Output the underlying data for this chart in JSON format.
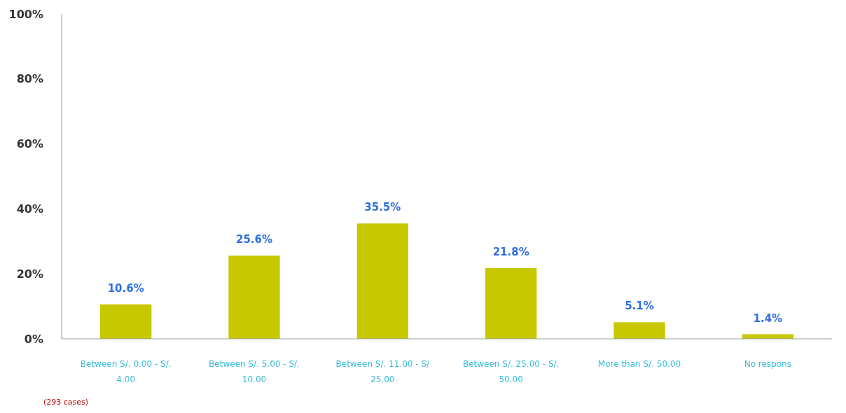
{
  "chart_data": {
    "type": "bar",
    "categories": [
      "Between S/. 0.00 - S/. 4.00",
      "Between S/. 5.00 - S/. 10.00",
      "Between S/. 11.00 - S/ 25.00",
      "Between S/. 25.00 - S/. 50.00",
      "More than S/. 50.00",
      "No respons"
    ],
    "values": [
      10.6,
      25.6,
      35.5,
      21.8,
      5.1,
      1.4
    ],
    "value_labels": [
      "10.6%",
      "25.6%",
      "35.5%",
      "21.8%",
      "5.1%",
      "1.4%"
    ],
    "color": "#c8c800",
    "ylim": [
      0,
      100
    ],
    "yticks": [
      {
        "value": 0,
        "label": "0%"
      },
      {
        "value": 20,
        "label": "20%"
      },
      {
        "value": 40,
        "label": "40%"
      },
      {
        "value": 60,
        "label": "60%"
      },
      {
        "value": 80,
        "label": "80%"
      },
      {
        "value": 100,
        "label": "100%"
      }
    ],
    "grid": false,
    "annotations": [
      "(293 cases)"
    ]
  }
}
